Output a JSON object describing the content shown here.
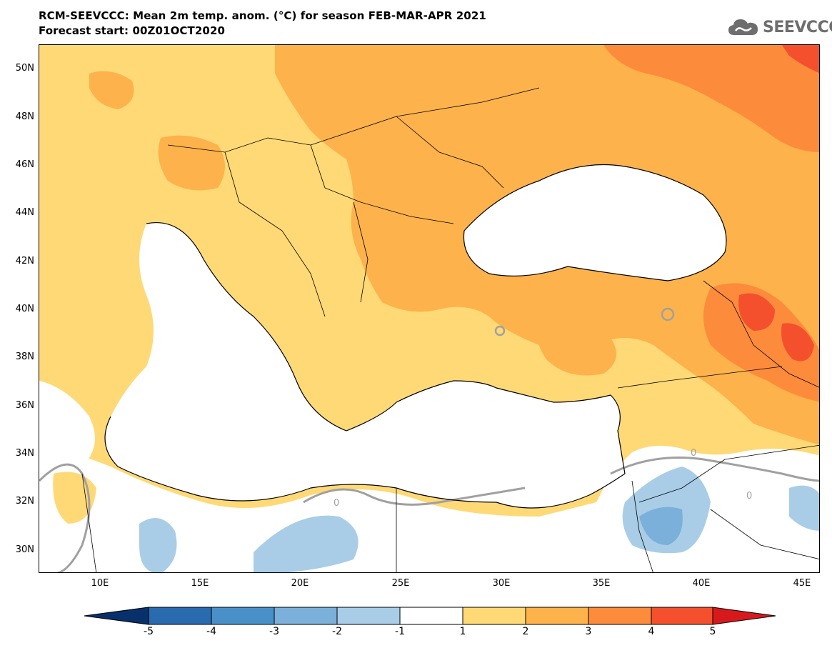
{
  "header": {
    "title_line1": "RCM-SEEVCCC: Mean 2m temp. anom. (°C) for season FEB-MAR-APR 2021",
    "title_line2": "Forecast start: 00Z01OCT2020",
    "logo_text": "SEEVCCC"
  },
  "map": {
    "lat_labels": [
      "50N",
      "48N",
      "46N",
      "44N",
      "42N",
      "40N",
      "38N",
      "36N",
      "34N",
      "32N",
      "30N"
    ],
    "lon_labels": [
      "10E",
      "15E",
      "20E",
      "25E",
      "30E",
      "35E",
      "40E",
      "45E"
    ],
    "contour_label": "0",
    "colors": {
      "land_border": "#000000",
      "contour_zero": "#a0a0a0"
    }
  },
  "colorbar": {
    "ticks": [
      "-5",
      "-4",
      "-3",
      "-2",
      "-1",
      "1",
      "2",
      "3",
      "4",
      "5"
    ],
    "colors": [
      "#08306b",
      "#2a6aae",
      "#4a90c8",
      "#7ab0da",
      "#a9cde6",
      "#ffffff",
      "#fed976",
      "#fdb24b",
      "#fc8c3c",
      "#f4502d",
      "#d7191c"
    ]
  }
}
